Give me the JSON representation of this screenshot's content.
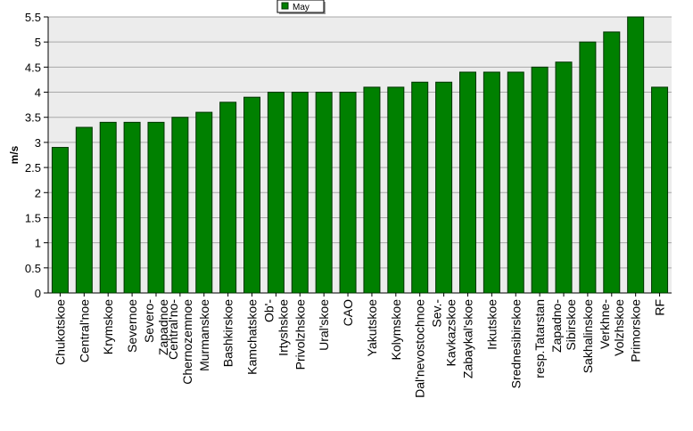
{
  "chart_data": {
    "type": "bar",
    "title": "",
    "xlabel": "",
    "ylabel": "m/s",
    "ylim": [
      0,
      5.5
    ],
    "yticks": [
      0,
      0.5,
      1,
      1.5,
      2,
      2.5,
      3,
      3.5,
      4,
      4.5,
      5,
      5.5
    ],
    "grid": true,
    "legend_position": "top-center",
    "colors": {
      "bar": "#008000",
      "bar_stroke": "#003300",
      "plot_background": "#ececec",
      "gridline": "#a8a8a8"
    },
    "categories": [
      "Chukotskoe",
      "Central'noe",
      "Krymskoe",
      "Severnoe",
      "Severo-Zapadnoe",
      "Central'no-Chernozemnoe",
      "Murmanskoe",
      "Bashkirskoe",
      "Kamchatskoe",
      "Ob'-Irtyshskoe",
      "Privolzhskoe",
      "Ural'skoe",
      "CAO",
      "Yakutskoe",
      "Kolymskoe",
      "Dal'nevostochnoe",
      "Sev.-Kavkazskoe",
      "Zabaykal'skoe",
      "Irkutskoe",
      "Srednesibirskoe",
      "resp.Tatarstan",
      "Zapadno-Sibirskoe",
      "Sakhalinskoe",
      "Verkhne-Volzhskoe",
      "Primorskoe",
      "RF"
    ],
    "series": [
      {
        "name": "May",
        "values": [
          2.9,
          3.3,
          3.4,
          3.4,
          3.4,
          3.5,
          3.6,
          3.8,
          3.9,
          4.0,
          4.0,
          4.0,
          4.0,
          4.1,
          4.1,
          4.2,
          4.2,
          4.4,
          4.4,
          4.4,
          4.5,
          4.6,
          5.0,
          5.2,
          5.5,
          4.1
        ]
      }
    ]
  }
}
